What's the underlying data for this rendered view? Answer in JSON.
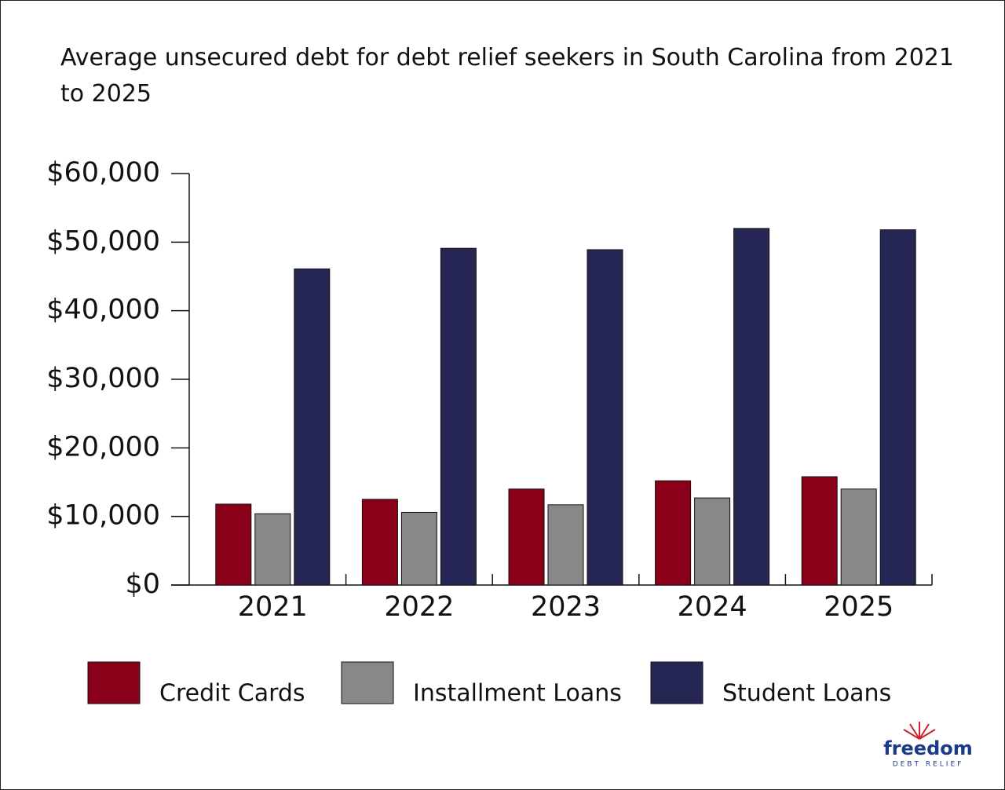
{
  "chart_data": {
    "type": "bar",
    "title": "Average unsecured debt for debt relief seekers in South Carolina from 2021 to 2025",
    "categories": [
      "2021",
      "2022",
      "2023",
      "2024",
      "2025"
    ],
    "series": [
      {
        "name": "Credit Cards",
        "color": "#8b0019",
        "values": [
          11800,
          12500,
          14000,
          15200,
          15800
        ]
      },
      {
        "name": "Installment Loans",
        "color": "#888888",
        "values": [
          10400,
          10600,
          11700,
          12700,
          14000
        ]
      },
      {
        "name": "Student Loans",
        "color": "#262654",
        "values": [
          46100,
          49100,
          48900,
          52000,
          51800
        ]
      }
    ],
    "ylim": [
      0,
      60000
    ],
    "yticks": [
      {
        "value": 0,
        "label": "$0"
      },
      {
        "value": 10000,
        "label": "$10,000"
      },
      {
        "value": 20000,
        "label": "$20,000"
      },
      {
        "value": 30000,
        "label": "$30,000"
      },
      {
        "value": 40000,
        "label": "$40,000"
      },
      {
        "value": 50000,
        "label": "$50,000"
      },
      {
        "value": 60000,
        "label": "$60,000"
      }
    ],
    "grid": false
  },
  "logo": {
    "name": "freedom",
    "tagline": "DEBT RELIEF"
  }
}
